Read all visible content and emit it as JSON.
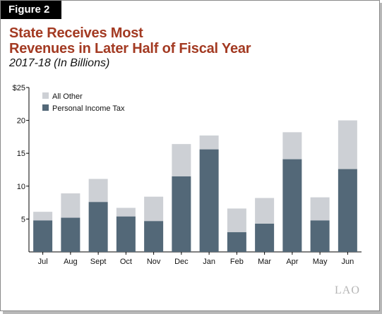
{
  "figure_label": "Figure 2",
  "title_line1": "State Receives Most",
  "title_line2": "Revenues in Later Half of Fiscal Year",
  "subtitle": "2017-18 (In Billions)",
  "logo_text": "LAO",
  "colors": {
    "personal_income_tax": "#536878",
    "all_other": "#cdd0d5",
    "title": "#a33a22"
  },
  "chart_data": {
    "type": "bar",
    "stacked": true,
    "categories": [
      "Jul",
      "Aug",
      "Sept",
      "Oct",
      "Nov",
      "Dec",
      "Jan",
      "Feb",
      "Mar",
      "Apr",
      "May",
      "Jun"
    ],
    "series": [
      {
        "name": "Personal Income Tax",
        "values": [
          4.8,
          5.2,
          7.6,
          5.4,
          4.7,
          11.5,
          15.6,
          3.0,
          4.3,
          14.1,
          4.8,
          12.6
        ]
      },
      {
        "name": "All Other",
        "values": [
          1.3,
          3.7,
          3.5,
          1.3,
          3.7,
          4.9,
          2.1,
          3.6,
          3.9,
          4.1,
          3.5,
          7.4
        ]
      }
    ],
    "yticks": [
      "$25",
      "20",
      "15",
      "10",
      "5"
    ],
    "ytick_values": [
      25,
      20,
      15,
      10,
      5
    ],
    "ylim": [
      0,
      25
    ],
    "legend_position": "top-left",
    "grid": false
  }
}
